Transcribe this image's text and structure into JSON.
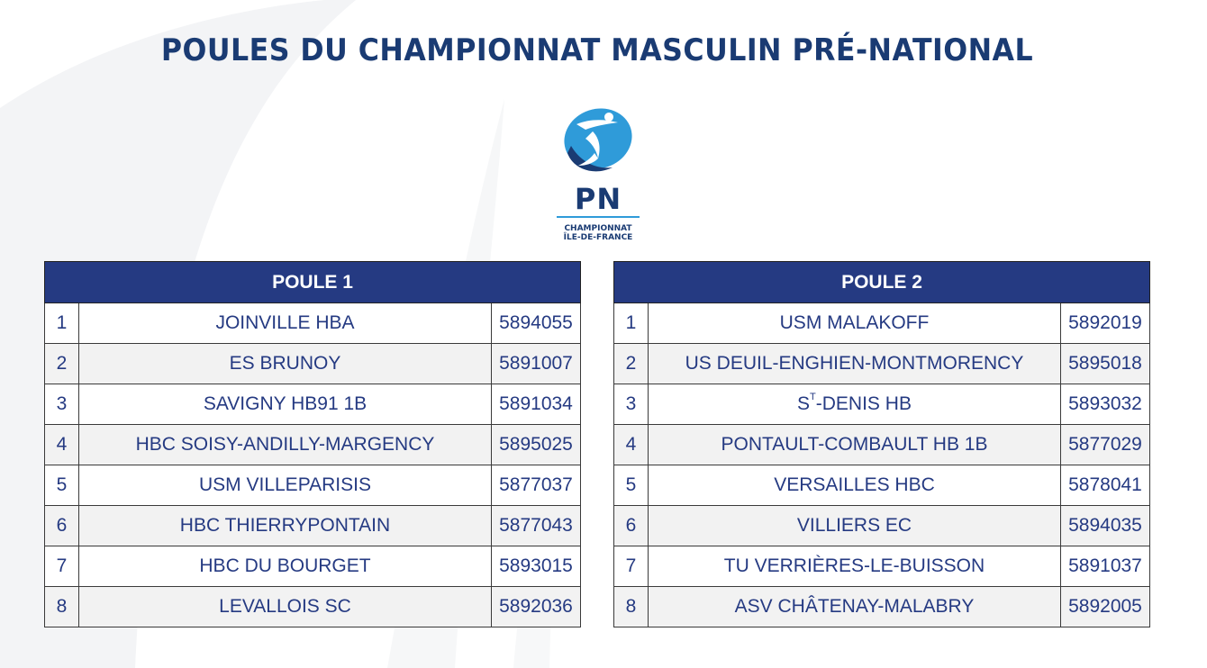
{
  "title": "POULES DU CHAMPIONNAT MASCULIN PRÉ-NATIONAL",
  "logo": {
    "initials": "PN",
    "line1": "CHAMPIONNAT",
    "line2": "ÎLE-DE-FRANCE"
  },
  "colors": {
    "title": "#1a3b73",
    "header_bg": "#253a82",
    "header_text": "#ffffff",
    "cell_text": "#253a82",
    "logo_blue": "#2f9bd9"
  },
  "poules": [
    {
      "header": "POULE 1",
      "rows": [
        {
          "num": "1",
          "club": "JOINVILLE HBA",
          "code": "5894055"
        },
        {
          "num": "2",
          "club": "ES BRUNOY",
          "code": "5891007"
        },
        {
          "num": "3",
          "club": "SAVIGNY HB91 1B",
          "code": "5891034"
        },
        {
          "num": "4",
          "club": "HBC SOISY-ANDILLY-MARGENCY",
          "code": "5895025"
        },
        {
          "num": "5",
          "club": "USM VILLEPARISIS",
          "code": "5877037"
        },
        {
          "num": "6",
          "club": "HBC THIERRYPONTAIN",
          "code": "5877043"
        },
        {
          "num": "7",
          "club": "HBC DU BOURGET",
          "code": "5893015"
        },
        {
          "num": "8",
          "club": "LEVALLOIS SC",
          "code": "5892036"
        }
      ]
    },
    {
      "header": "POULE 2",
      "rows": [
        {
          "num": "1",
          "club": "USM MALAKOFF",
          "code": "5892019"
        },
        {
          "num": "2",
          "club": "US DEUIL-ENGHIEN-MONTMORENCY",
          "code": "5895018"
        },
        {
          "num": "3",
          "club_prefix": "S",
          "club_sup": "T",
          "club": "-DENIS HB",
          "code": "5893032"
        },
        {
          "num": "4",
          "club": "PONTAULT-COMBAULT HB 1B",
          "code": "5877029"
        },
        {
          "num": "5",
          "club": "VERSAILLES HBC",
          "code": "5878041"
        },
        {
          "num": "6",
          "club": "VILLIERS EC",
          "code": "5894035"
        },
        {
          "num": "7",
          "club": "TU VERRIÈRES-LE-BUISSON",
          "code": "5891037"
        },
        {
          "num": "8",
          "club": "ASV CHÂTENAY-MALABRY",
          "code": "5892005"
        }
      ]
    }
  ]
}
